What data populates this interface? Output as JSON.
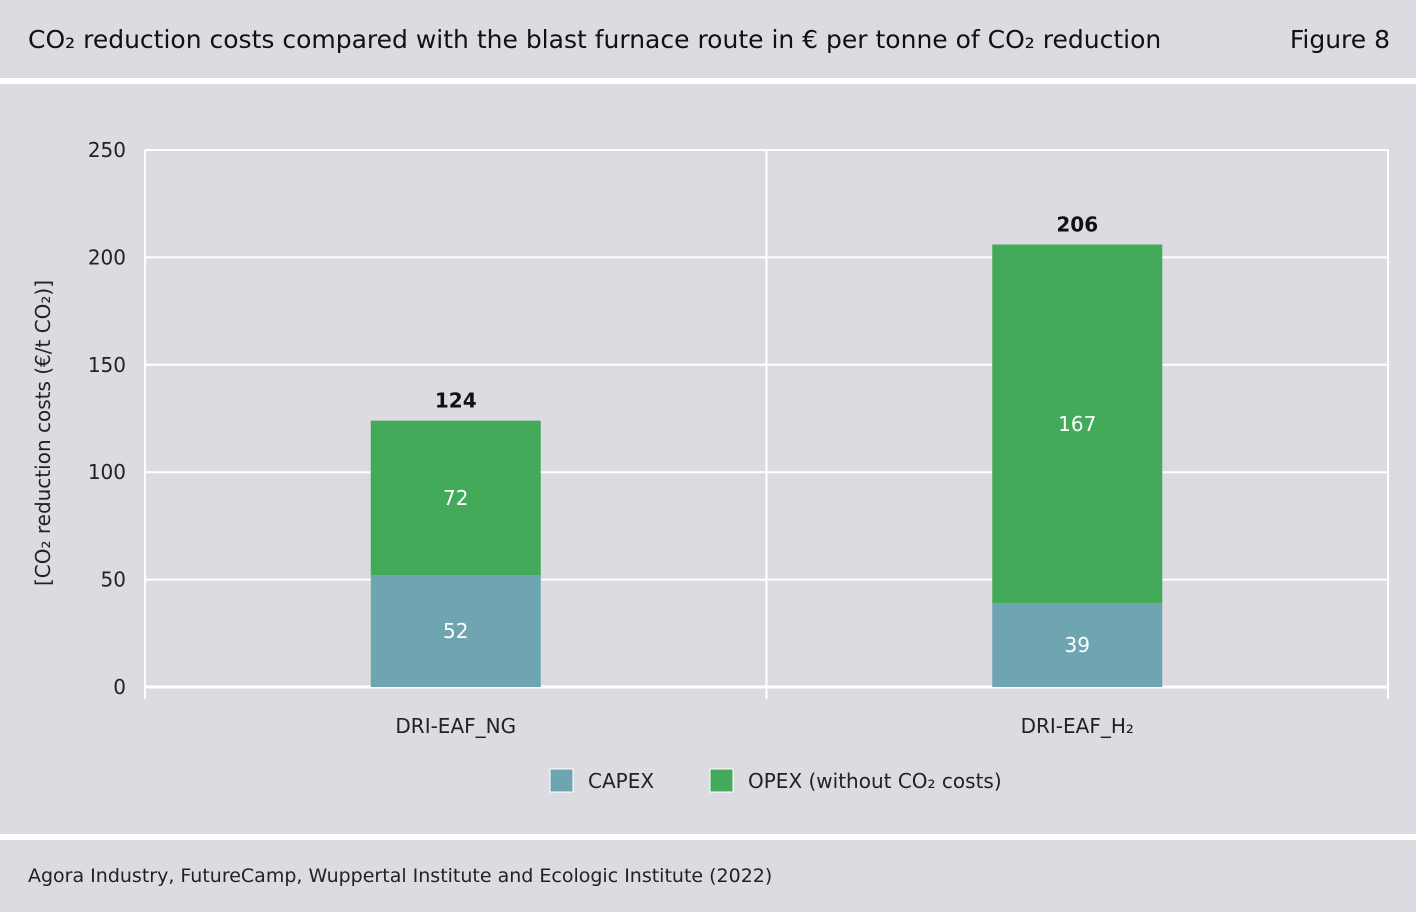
{
  "header": {
    "title": "CO₂ reduction costs compared with the blast furnace route in € per tonne of CO₂ reduction",
    "figure_label": "Figure 8"
  },
  "footer": {
    "source": "Agora Industry, FutureCamp, Wuppertal Institute and Ecologic Institute (2022)"
  },
  "colors": {
    "capex": "#6ea5b0",
    "opex": "#42aa58",
    "background": "#dcdbe1",
    "grid": "#ffffff"
  },
  "chart_data": {
    "type": "bar",
    "stacked": true,
    "categories": [
      "DRI-EAF_NG",
      "DRI-EAF_H₂"
    ],
    "series": [
      {
        "name": "CAPEX",
        "values": [
          52,
          39
        ]
      },
      {
        "name": "OPEX (without CO₂ costs)",
        "values": [
          72,
          167
        ]
      }
    ],
    "totals": [
      124,
      206
    ],
    "ylabel": "[CO₂ reduction costs (€/t CO₂)]",
    "ylim": [
      0,
      250
    ],
    "yticks": [
      0,
      50,
      100,
      150,
      200,
      250
    ],
    "grid": true,
    "legend_position": "bottom"
  }
}
